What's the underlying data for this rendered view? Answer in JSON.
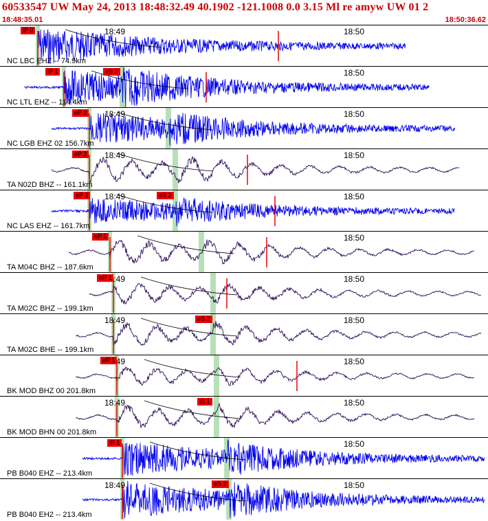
{
  "header": {
    "title": "60533547 UW May 24, 2013 18:48:32.49   40.1902 -121.1008   0.0 3.15 Ml re amyw UW 01    2",
    "start_time": "18:48:35.01",
    "end_time": "18:50:36.62"
  },
  "tick_labels": {
    "t1": "18:49",
    "t2": "18:50"
  },
  "colors": {
    "blue_trace": "#0000ee",
    "dark_trace": "#2a0a55",
    "pick": "#ee0000",
    "header_text": "#cc0000",
    "s_window": "#b8e0b8"
  },
  "panels": [
    {
      "station": "NC LBC EHZ -- 74.9km",
      "trace_color": "blue",
      "picks": [
        "iP 0"
      ],
      "pick2": ""
    },
    {
      "station": "NC LTL EHZ -- 114.4km",
      "trace_color": "blue",
      "picks": [
        "iP 1"
      ],
      "pick2": "eS 2"
    },
    {
      "station": "NC LGB EHZ 02 156.7km",
      "trace_color": "blue",
      "picks": [
        "eP 2"
      ],
      "pick2": ""
    },
    {
      "station": "TA N02D BHZ -- 161.1km",
      "trace_color": "dark",
      "picks": [
        "eP 2"
      ],
      "pick2": ""
    },
    {
      "station": "NC LAS EHZ -- 161.7km",
      "trace_color": "blue",
      "picks": [
        "eP 2"
      ],
      "pick2": "eS 2"
    },
    {
      "station": "TA M04C BHZ -- 187.6km",
      "trace_color": "dark",
      "picks": [
        "eP 1"
      ],
      "pick2": ""
    },
    {
      "station": "TA M02C BHZ -- 199.1km",
      "trace_color": "dark",
      "picks": [
        "eP 1"
      ],
      "pick2": ""
    },
    {
      "station": "TA M02C BHE -- 199.1km",
      "trace_color": "dark",
      "picks": [
        ""
      ],
      "pick2": "eS 2"
    },
    {
      "station": "BK MOD BHZ 00 201.8km",
      "trace_color": "dark",
      "picks": [
        "eP 1"
      ],
      "pick2": ""
    },
    {
      "station": "BK MOD BHN 00 201.8km",
      "trace_color": "dark",
      "picks": [
        ""
      ],
      "pick2": "iS 1"
    },
    {
      "station": "PB B040 EHZ -- 213.4km",
      "trace_color": "blue",
      "picks": [
        "iP 1"
      ],
      "pick2": ""
    },
    {
      "station": "PB B040 EH2 -- 213.4km",
      "trace_color": "blue",
      "picks": [
        ""
      ],
      "pick2": "eS 2"
    }
  ]
}
